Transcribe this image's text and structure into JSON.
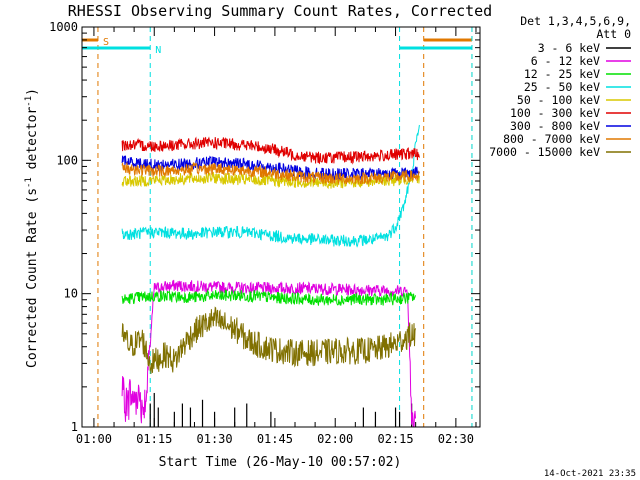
{
  "chart_data": {
    "type": "line",
    "title": "RHESSI Observing Summary Count Rates, Corrected",
    "xlabel": "Start Time (26-May-10 00:57:02)",
    "ylabel_main": "Corrected Count Rate (s",
    "ylabel_sup1": "-1",
    "ylabel_mid": " detector",
    "ylabel_sup2": "-1",
    "ylabel_end": ")",
    "yscale": "log",
    "ylim": [
      1,
      1000
    ],
    "xlim": [
      "00:57:02",
      "02:36:00"
    ],
    "xticks": [
      "01:00",
      "01:15",
      "01:30",
      "01:45",
      "02:00",
      "02:15",
      "02:30"
    ],
    "yticks": [
      "1",
      "10",
      "100",
      "1000"
    ],
    "legend_header": [
      "Det 1,3,4,5,6,9,",
      "Att 0"
    ],
    "footer_date": "14-Oct-2021 23:35",
    "flags": [
      {
        "label": "S",
        "color": "#e07800",
        "segments": [
          [
            "00:57:02",
            "01:01:00"
          ],
          [
            "02:22:00",
            "02:34:00"
          ]
        ],
        "markers": [
          "01:01:00",
          "02:22:00",
          "02:34:00"
        ]
      },
      {
        "label": "N",
        "color": "#00e0e0",
        "segments": [
          [
            "00:57:02",
            "01:14:00"
          ],
          [
            "02:16:00",
            "02:34:00"
          ]
        ],
        "markers": [
          "01:14:00",
          "02:16:00",
          "02:34:00"
        ]
      }
    ],
    "series": [
      {
        "name": "3 - 6 keV",
        "color": "#000000",
        "style": "spikes",
        "x": [
          "01:14",
          "01:15",
          "01:16",
          "01:20",
          "01:22",
          "01:24",
          "01:27",
          "01:30",
          "01:35",
          "01:38",
          "01:44",
          "02:07",
          "02:10",
          "02:15",
          "02:16",
          "02:19"
        ],
        "y": [
          1.5,
          1.8,
          1.4,
          1.3,
          1.5,
          1.4,
          1.6,
          1.3,
          1.4,
          1.5,
          1.3,
          1.4,
          1.3,
          1.4,
          1.3,
          1.5
        ]
      },
      {
        "name": "6 - 12 keV",
        "color": "#e000e0",
        "style": "mixed",
        "x": [
          "01:07",
          "01:08",
          "01:09",
          "01:10",
          "01:11",
          "01:12",
          "01:13",
          "01:15",
          "01:20",
          "01:30",
          "01:40",
          "01:50",
          "02:00",
          "02:10",
          "02:15",
          "02:18",
          "02:19",
          "02:20"
        ],
        "y": [
          1.9,
          1.5,
          1.8,
          1.6,
          1.9,
          1.4,
          1.7,
          11,
          11.5,
          11.2,
          11,
          11,
          10.8,
          10.6,
          10.5,
          10.5,
          1.2,
          1.2
        ]
      },
      {
        "name": "12 - 25 keV",
        "color": "#00e000",
        "style": "noisy",
        "x": [
          "01:07",
          "01:10",
          "01:15",
          "01:20",
          "01:25",
          "01:30",
          "01:35",
          "01:40",
          "01:45",
          "01:50",
          "01:55",
          "02:00",
          "02:05",
          "02:10",
          "02:15",
          "02:18",
          "02:20"
        ],
        "y": [
          9,
          9.3,
          9.6,
          9.5,
          9.4,
          9.6,
          9.7,
          9.6,
          9.3,
          9.2,
          9.0,
          9.0,
          9.1,
          9.0,
          9.1,
          9.3,
          9.5
        ]
      },
      {
        "name": "25 - 50 keV",
        "color": "#00e0e0",
        "style": "noisy",
        "x": [
          "01:07",
          "01:10",
          "01:15",
          "01:20",
          "01:25",
          "01:30",
          "01:35",
          "01:40",
          "01:45",
          "01:50",
          "01:55",
          "02:00",
          "02:05",
          "02:10",
          "02:13",
          "02:15",
          "02:17",
          "02:19",
          "02:20",
          "02:21"
        ],
        "y": [
          28,
          28,
          29,
          28.5,
          28,
          29,
          29,
          28.5,
          27,
          26,
          25.5,
          25,
          25,
          25.5,
          27,
          32,
          45,
          80,
          130,
          180
        ]
      },
      {
        "name": "50 - 100 keV",
        "color": "#d8c800",
        "style": "noisy",
        "x": [
          "01:07",
          "01:10",
          "01:15",
          "01:20",
          "01:25",
          "01:30",
          "01:35",
          "01:40",
          "01:45",
          "01:50",
          "01:55",
          "02:00",
          "02:05",
          "02:10",
          "02:15",
          "02:18",
          "02:20",
          "02:21"
        ],
        "y": [
          70,
          70,
          71,
          72,
          73,
          74,
          72,
          71,
          70,
          69,
          68,
          68,
          69,
          70,
          71,
          73,
          75,
          73
        ]
      },
      {
        "name": "100 - 300 keV",
        "color": "#e00000",
        "style": "noisy",
        "x": [
          "01:07",
          "01:10",
          "01:15",
          "01:20",
          "01:25",
          "01:30",
          "01:35",
          "01:40",
          "01:45",
          "01:50",
          "01:55",
          "02:00",
          "02:05",
          "02:10",
          "02:15",
          "02:18",
          "02:20",
          "02:21"
        ],
        "y": [
          130,
          130,
          128,
          130,
          133,
          135,
          132,
          128,
          120,
          110,
          105,
          105,
          106,
          108,
          110,
          112,
          112,
          110
        ]
      },
      {
        "name": "300 - 800 keV",
        "color": "#0000e0",
        "style": "noisy",
        "x": [
          "01:07",
          "01:10",
          "01:15",
          "01:20",
          "01:25",
          "01:30",
          "01:35",
          "01:40",
          "01:45",
          "01:50",
          "01:55",
          "02:00",
          "02:05",
          "02:10",
          "02:15",
          "02:18",
          "02:20",
          "02:21"
        ],
        "y": [
          100,
          96,
          92,
          93,
          95,
          97,
          95,
          92,
          88,
          83,
          80,
          79,
          79,
          80,
          80,
          81,
          82,
          80
        ]
      },
      {
        "name": "800 - 7000 keV",
        "color": "#e07800",
        "style": "noisy",
        "x": [
          "01:07",
          "01:10",
          "01:15",
          "01:20",
          "01:25",
          "01:30",
          "01:35",
          "01:40",
          "01:45",
          "01:50",
          "01:55",
          "02:00",
          "02:05",
          "02:10",
          "02:15",
          "02:18",
          "02:20",
          "02:21"
        ],
        "y": [
          88,
          86,
          83,
          84,
          86,
          87,
          85,
          83,
          80,
          76,
          74,
          73,
          73,
          74,
          75,
          76,
          76,
          74
        ]
      },
      {
        "name": "7000 - 15000 keV",
        "color": "#807000",
        "style": "blocky",
        "x": [
          "01:07",
          "01:09",
          "01:12",
          "01:14",
          "01:18",
          "01:20",
          "01:22",
          "01:24",
          "01:26",
          "01:28",
          "01:30",
          "01:33",
          "01:36",
          "01:38",
          "01:42",
          "01:45",
          "01:50",
          "01:55",
          "02:00",
          "02:05",
          "02:10",
          "02:15",
          "02:18",
          "02:20"
        ],
        "y": [
          5,
          4,
          4.6,
          3,
          3.5,
          3.1,
          4,
          4.8,
          5.5,
          6,
          6.4,
          5.8,
          5.2,
          4.5,
          4,
          3.8,
          3.6,
          3.6,
          3.7,
          3.7,
          3.8,
          4.2,
          4.8,
          5
        ]
      }
    ]
  }
}
